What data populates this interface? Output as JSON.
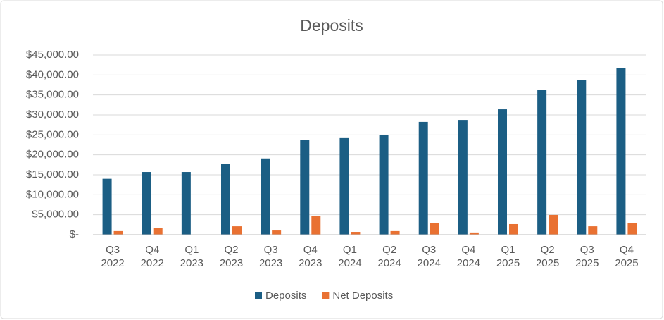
{
  "chart_data": {
    "type": "bar",
    "title": "Deposits",
    "categories": [
      "Q3 2022",
      "Q4 2022",
      "Q1 2023",
      "Q2 2023",
      "Q3 2023",
      "Q4 2023",
      "Q1 2024",
      "Q2 2024",
      "Q3 2024",
      "Q4 2024",
      "Q1 2025",
      "Q2 2025",
      "Q3 2025",
      "Q4 2025"
    ],
    "series": [
      {
        "name": "Deposits",
        "color": "#1b5e84",
        "values": [
          14000,
          15700,
          15700,
          17800,
          19100,
          23650,
          24200,
          25050,
          28250,
          28750,
          31400,
          36350,
          38650,
          41650
        ]
      },
      {
        "name": "Net Deposits",
        "color": "#e97132",
        "values": [
          900,
          1750,
          0,
          2100,
          1050,
          4600,
          700,
          900,
          3000,
          550,
          2650,
          4950,
          2100,
          3000
        ]
      }
    ],
    "ylim": [
      0,
      45000
    ],
    "yticks": [
      {
        "value": 0,
        "label": "$-"
      },
      {
        "value": 5000,
        "label": "$5,000.00"
      },
      {
        "value": 10000,
        "label": "$10,000.00"
      },
      {
        "value": 15000,
        "label": "$15,000.00"
      },
      {
        "value": 20000,
        "label": "$20,000.00"
      },
      {
        "value": 25000,
        "label": "$25,000.00"
      },
      {
        "value": 30000,
        "label": "$30,000.00"
      },
      {
        "value": 35000,
        "label": "$35,000.00"
      },
      {
        "value": 40000,
        "label": "$40,000.00"
      },
      {
        "value": 45000,
        "label": "$45,000.00"
      }
    ],
    "grid": true,
    "legend": "bottom"
  }
}
